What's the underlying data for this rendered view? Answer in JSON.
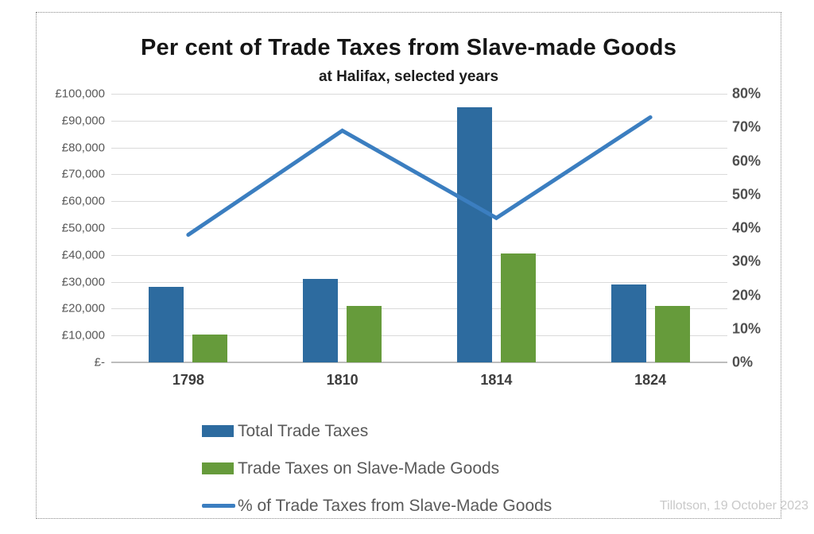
{
  "attribution": "Tillotson, 19 October 2023",
  "chart_data": {
    "type": "combo-bar-line",
    "title": "Per cent of Trade Taxes from Slave-made Goods",
    "subtitle": "at Halifax, selected years",
    "categories": [
      "1798",
      "1810",
      "1814",
      "1824"
    ],
    "series": [
      {
        "name": "Total Trade Taxes",
        "type": "bar",
        "axis": "left",
        "color": "#2d6b9f",
        "values": [
          28000,
          31000,
          95000,
          29000
        ]
      },
      {
        "name": "Trade Taxes on Slave-Made Goods",
        "type": "bar",
        "axis": "left",
        "color": "#669b3b",
        "values": [
          10500,
          21000,
          40500,
          21000
        ]
      },
      {
        "name": "% of Trade Taxes from Slave-Made Goods",
        "type": "line",
        "axis": "right",
        "color": "#3b7ec0",
        "values": [
          38,
          69,
          43,
          73
        ]
      }
    ],
    "left_axis": {
      "min": 0,
      "max": 100000,
      "tick_labels": [
        "£100,000",
        "£90,000",
        "£80,000",
        "£70,000",
        "£60,000",
        "£50,000",
        "£40,000",
        "£30,000",
        "£20,000",
        "£10,000",
        "£-"
      ]
    },
    "right_axis": {
      "min": 0,
      "max": 80,
      "tick_labels": [
        "80%",
        "70%",
        "60%",
        "50%",
        "40%",
        "30%",
        "20%",
        "10%",
        "0%"
      ]
    },
    "grid": true,
    "legend_position": "bottom-left"
  }
}
